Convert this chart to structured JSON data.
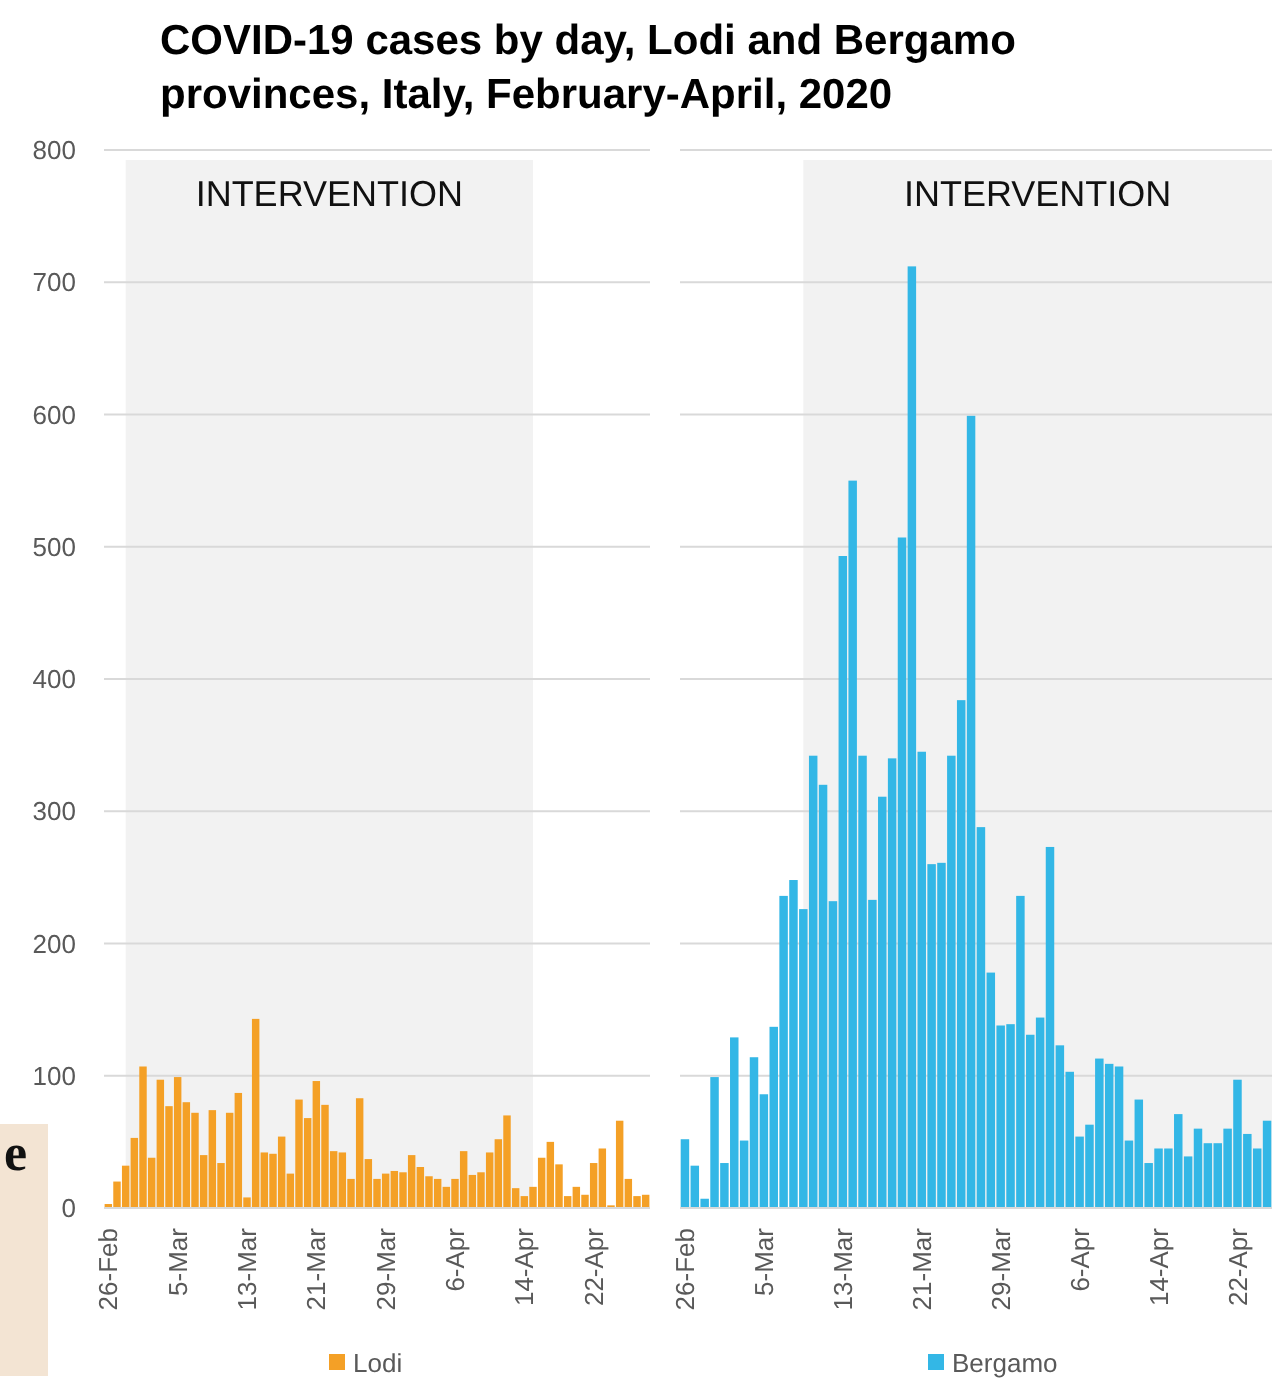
{
  "chart_data": [
    {
      "type": "bar",
      "title": "COVID-19 cases by day, Lodi and Bergamo provinces, Italy, February-April, 2020",
      "annotations": [
        "e"
      ],
      "x": [
        "2020-02-26",
        "2020-02-27",
        "2020-02-28",
        "2020-02-29",
        "2020-03-01",
        "2020-03-02",
        "2020-03-03",
        "2020-03-04",
        "2020-03-05",
        "2020-03-06",
        "2020-03-07",
        "2020-03-08",
        "2020-03-09",
        "2020-03-10",
        "2020-03-11",
        "2020-03-12",
        "2020-03-13",
        "2020-03-14",
        "2020-03-15",
        "2020-03-16",
        "2020-03-17",
        "2020-03-18",
        "2020-03-19",
        "2020-03-20",
        "2020-03-21",
        "2020-03-22",
        "2020-03-23",
        "2020-03-24",
        "2020-03-25",
        "2020-03-26",
        "2020-03-27",
        "2020-03-28",
        "2020-03-29",
        "2020-03-30",
        "2020-03-31",
        "2020-04-01",
        "2020-04-02",
        "2020-04-03",
        "2020-04-04",
        "2020-04-05",
        "2020-04-06",
        "2020-04-07",
        "2020-04-08",
        "2020-04-09",
        "2020-04-10",
        "2020-04-11",
        "2020-04-12",
        "2020-04-13",
        "2020-04-14",
        "2020-04-15",
        "2020-04-16",
        "2020-04-17",
        "2020-04-18",
        "2020-04-19",
        "2020-04-20",
        "2020-04-21",
        "2020-04-22",
        "2020-04-23",
        "2020-04-24",
        "2020-04-25",
        "2020-04-26",
        "2020-04-27",
        "2020-04-28"
      ],
      "series": [
        {
          "name": "Lodi",
          "color": "#f4a026",
          "values": [
            3,
            20,
            32,
            53,
            107,
            38,
            97,
            77,
            99,
            80,
            72,
            40,
            74,
            34,
            72,
            87,
            8,
            143,
            42,
            41,
            54,
            26,
            82,
            68,
            96,
            78,
            43,
            42,
            22,
            83,
            37,
            22,
            26,
            28,
            27,
            40,
            31,
            24,
            22,
            16,
            22,
            43,
            25,
            27,
            42,
            52,
            70,
            15,
            9,
            16,
            38,
            50,
            33,
            9,
            16,
            10,
            34,
            45,
            2,
            66,
            22,
            9,
            10
          ]
        }
      ],
      "xlim": [
        "2020-02-25T12:00",
        "2020-04-28T12:00"
      ],
      "xticks": [
        {
          "value": "2020-02-26",
          "label": "26-Feb"
        },
        {
          "value": "2020-03-05",
          "label": "5-Mar"
        },
        {
          "value": "2020-03-13",
          "label": "13-Mar"
        },
        {
          "value": "2020-03-21",
          "label": "21-Mar"
        },
        {
          "value": "2020-03-29",
          "label": "29-Mar"
        },
        {
          "value": "2020-04-06",
          "label": "6-Apr"
        },
        {
          "value": "2020-04-14",
          "label": "14-Apr"
        },
        {
          "value": "2020-04-22",
          "label": "22-Apr"
        }
      ],
      "ylim": [
        0,
        800
      ],
      "yticks": [
        0,
        100,
        200,
        300,
        400,
        500,
        600,
        700,
        800
      ],
      "grid": "y",
      "legend": "bottom",
      "bands": [
        {
          "axis": "x",
          "from": "2020-02-28",
          "to": "2020-04-15",
          "label": "INTERVENTION",
          "color": "#f2f2f2"
        }
      ]
    },
    {
      "type": "bar",
      "x": [
        "2020-02-26",
        "2020-02-27",
        "2020-02-28",
        "2020-02-29",
        "2020-03-01",
        "2020-03-02",
        "2020-03-03",
        "2020-03-04",
        "2020-03-05",
        "2020-03-06",
        "2020-03-07",
        "2020-03-08",
        "2020-03-09",
        "2020-03-10",
        "2020-03-11",
        "2020-03-12",
        "2020-03-13",
        "2020-03-14",
        "2020-03-15",
        "2020-03-16",
        "2020-03-17",
        "2020-03-18",
        "2020-03-19",
        "2020-03-20",
        "2020-03-21",
        "2020-03-22",
        "2020-03-23",
        "2020-03-24",
        "2020-03-25",
        "2020-03-26",
        "2020-03-27",
        "2020-03-28",
        "2020-03-29",
        "2020-03-30",
        "2020-03-31",
        "2020-04-01",
        "2020-04-02",
        "2020-04-03",
        "2020-04-04",
        "2020-04-05",
        "2020-04-06",
        "2020-04-07",
        "2020-04-08",
        "2020-04-09",
        "2020-04-10",
        "2020-04-11",
        "2020-04-12",
        "2020-04-13",
        "2020-04-14",
        "2020-04-15",
        "2020-04-16",
        "2020-04-17",
        "2020-04-18",
        "2020-04-19",
        "2020-04-20",
        "2020-04-21",
        "2020-04-22",
        "2020-04-23",
        "2020-04-24",
        "2020-04-25"
      ],
      "series": [
        {
          "name": "Bergamo",
          "color": "#33b7e6",
          "values": [
            52,
            32,
            7,
            99,
            34,
            129,
            51,
            114,
            86,
            137,
            236,
            248,
            226,
            342,
            320,
            232,
            493,
            550,
            342,
            233,
            311,
            340,
            507,
            712,
            345,
            260,
            261,
            342,
            384,
            599,
            288,
            178,
            138,
            139,
            236,
            131,
            144,
            273,
            123,
            103,
            54,
            63,
            113,
            109,
            107,
            51,
            82,
            34,
            45,
            45,
            71,
            39,
            60,
            49,
            49,
            60,
            97,
            56,
            45,
            66
          ]
        }
      ],
      "xlim": [
        "2020-02-25T12:00",
        "2020-04-25T12:00"
      ],
      "xticks": [
        {
          "value": "2020-02-26",
          "label": "26-Feb"
        },
        {
          "value": "2020-03-05",
          "label": "5-Mar"
        },
        {
          "value": "2020-03-13",
          "label": "13-Mar"
        },
        {
          "value": "2020-03-21",
          "label": "21-Mar"
        },
        {
          "value": "2020-03-29",
          "label": "29-Mar"
        },
        {
          "value": "2020-04-06",
          "label": "6-Apr"
        },
        {
          "value": "2020-04-14",
          "label": "14-Apr"
        },
        {
          "value": "2020-04-22",
          "label": "22-Apr"
        }
      ],
      "ylim": [
        0,
        800
      ],
      "yticks": [
        0,
        100,
        200,
        300,
        400,
        500,
        600,
        700,
        800
      ],
      "grid": "y",
      "legend": "bottom",
      "tick_labels": "x",
      "bands": [
        {
          "axis": "x",
          "from": "2020-03-09",
          "to": "2020-04-25T12:00",
          "label": "INTERVENTION",
          "color": "#f2f2f2"
        }
      ]
    }
  ]
}
